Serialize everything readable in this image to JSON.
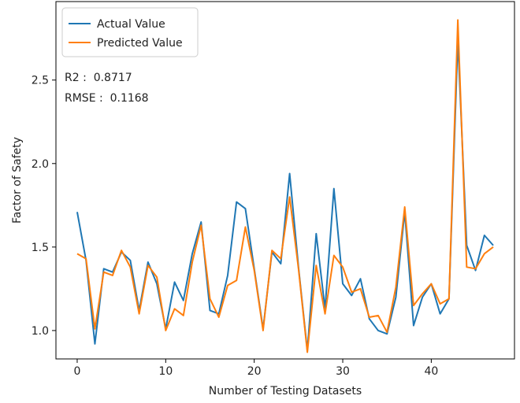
{
  "chart_data": {
    "type": "line",
    "xlabel": "Number of Testing Datasets",
    "ylabel": "Factor of Safety",
    "xlim": [
      -2.4,
      49.4
    ],
    "ylim": [
      0.83,
      2.97
    ],
    "xticks": [
      0,
      10,
      20,
      30,
      40
    ],
    "yticks": [
      1.0,
      1.5,
      2.0,
      2.5
    ],
    "ytick_labels": [
      "1.0",
      "1.5",
      "2.0",
      "2.5"
    ],
    "grid": false,
    "legend_position": "top-left",
    "annotations": [
      "R2 :  0.8717",
      "RMSE :  0.1168"
    ],
    "x": [
      0,
      1,
      2,
      3,
      4,
      5,
      6,
      7,
      8,
      9,
      10,
      11,
      12,
      13,
      14,
      15,
      16,
      17,
      18,
      19,
      20,
      21,
      22,
      23,
      24,
      25,
      26,
      27,
      28,
      29,
      30,
      31,
      32,
      33,
      34,
      35,
      36,
      37,
      38,
      39,
      40,
      41,
      42,
      43,
      44,
      45,
      46,
      47
    ],
    "series": [
      {
        "name": "Actual Value",
        "color": "#1f77b4",
        "values": [
          1.71,
          1.42,
          0.92,
          1.37,
          1.35,
          1.47,
          1.42,
          1.12,
          1.41,
          1.28,
          1.01,
          1.29,
          1.18,
          1.46,
          1.65,
          1.12,
          1.1,
          1.33,
          1.77,
          1.73,
          1.37,
          1.01,
          1.47,
          1.4,
          1.94,
          1.38,
          0.88,
          1.58,
          1.13,
          1.85,
          1.28,
          1.21,
          1.31,
          1.07,
          1.0,
          0.98,
          1.2,
          1.71,
          1.03,
          1.2,
          1.28,
          1.1,
          1.19,
          2.74,
          1.51,
          1.36,
          1.57,
          1.51
        ]
      },
      {
        "name": "Predicted Value",
        "color": "#ff7f0e",
        "values": [
          1.46,
          1.43,
          1.01,
          1.35,
          1.33,
          1.48,
          1.38,
          1.1,
          1.39,
          1.32,
          1.0,
          1.13,
          1.09,
          1.41,
          1.63,
          1.19,
          1.08,
          1.27,
          1.3,
          1.62,
          1.36,
          1.0,
          1.48,
          1.43,
          1.8,
          1.37,
          0.87,
          1.39,
          1.1,
          1.45,
          1.38,
          1.23,
          1.25,
          1.08,
          1.09,
          0.99,
          1.26,
          1.74,
          1.15,
          1.22,
          1.28,
          1.16,
          1.19,
          2.86,
          1.38,
          1.37,
          1.46,
          1.5
        ]
      }
    ]
  }
}
